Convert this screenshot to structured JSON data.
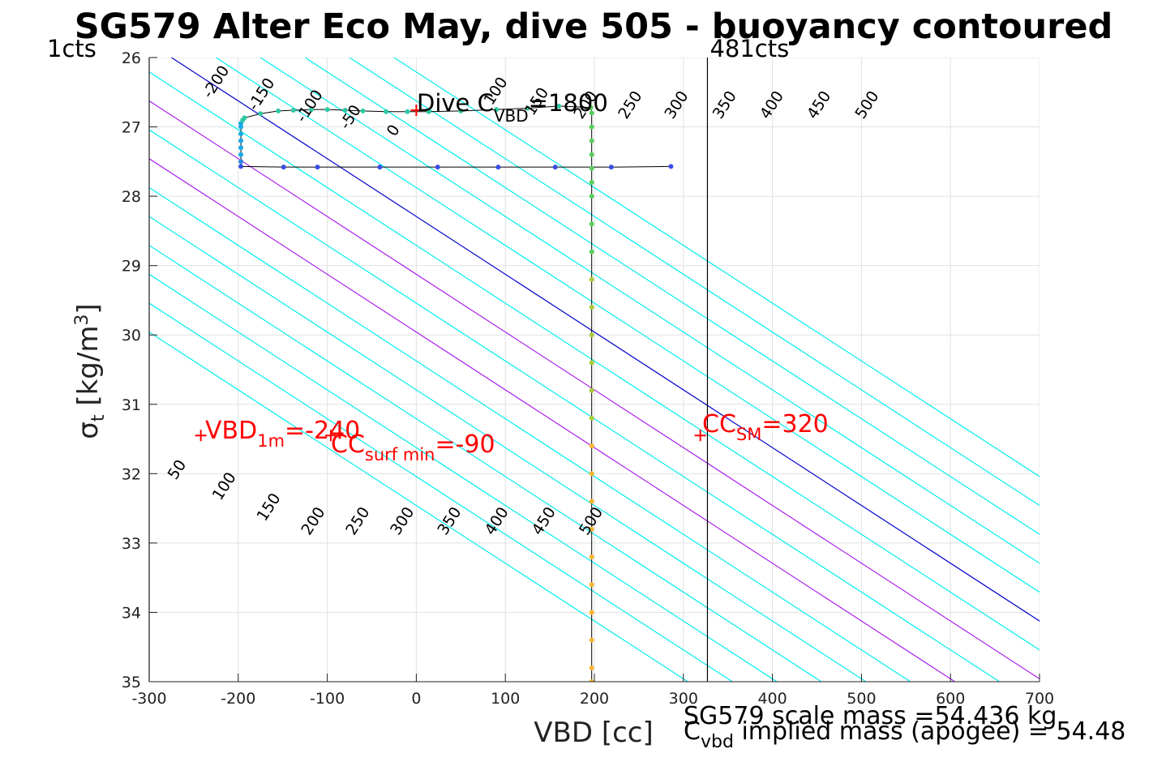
{
  "chart_data": {
    "type": "line",
    "title": "SG579 Alter Eco May, dive 505 - buoyancy contoured",
    "xlabel": "VBD [cc]",
    "ylabel": {
      "sym": "σ",
      "sub": "t",
      "unit": " [kg/m",
      "sup": "3",
      "close": "]"
    },
    "xlim": [
      -300,
      700
    ],
    "ylim": [
      26,
      35
    ],
    "y_reversed": true,
    "grid": true,
    "xticks": [
      -300,
      -200,
      -100,
      0,
      100,
      200,
      300,
      400,
      500,
      600,
      700
    ],
    "yticks": [
      26,
      27,
      28,
      29,
      30,
      31,
      32,
      33,
      34,
      35
    ],
    "contours": {
      "slope_cc_per_kgm3": 120,
      "levels": [
        -250,
        -200,
        -150,
        -100,
        -50,
        0,
        50,
        100,
        150,
        200,
        250,
        300,
        350,
        400,
        450,
        500
      ],
      "zero_intercept_at_sigma_26": -275,
      "special_colors": {
        "0": "#0000cc",
        "100": "#aa22ee",
        "200": "#aa22ee"
      },
      "default_color": "#00eeee",
      "top_labels": [
        {
          "text": "-200",
          "x": -231,
          "y": 26.6
        },
        {
          "text": "-150",
          "x": -180,
          "y": 26.78
        },
        {
          "text": "-100",
          "x": -126,
          "y": 26.95
        },
        {
          "text": "-50",
          "x": -77,
          "y": 27.05
        },
        {
          "text": "0",
          "x": -24,
          "y": 27.15
        },
        {
          "text": "100",
          "x": 85,
          "y": 26.7
        },
        {
          "text": "150",
          "x": 131,
          "y": 26.85
        },
        {
          "text": "200",
          "x": 186,
          "y": 26.9
        },
        {
          "text": "250",
          "x": 236,
          "y": 26.9
        },
        {
          "text": "300",
          "x": 288,
          "y": 26.9
        },
        {
          "text": "350",
          "x": 342,
          "y": 26.9
        },
        {
          "text": "400",
          "x": 395,
          "y": 26.9
        },
        {
          "text": "450",
          "x": 448,
          "y": 26.9
        },
        {
          "text": "500",
          "x": 502,
          "y": 26.9
        }
      ],
      "bottom_labels": [
        {
          "text": "50",
          "x": -270,
          "y": 32.1
        },
        {
          "text": "100",
          "x": -220,
          "y": 32.4
        },
        {
          "text": "150",
          "x": -170,
          "y": 32.7
        },
        {
          "text": "200",
          "x": -120,
          "y": 32.9
        },
        {
          "text": "250",
          "x": -70,
          "y": 32.9
        },
        {
          "text": "300",
          "x": -20,
          "y": 32.9
        },
        {
          "text": "350",
          "x": 33,
          "y": 32.9
        },
        {
          "text": "400",
          "x": 86,
          "y": 32.9
        },
        {
          "text": "450",
          "x": 139,
          "y": 32.9
        },
        {
          "text": "500",
          "x": 192,
          "y": 32.9
        }
      ]
    },
    "vertical_lines": [
      {
        "x": 327,
        "label": "481cts",
        "color": "#000000"
      },
      {
        "x": -300,
        "label": "1cts",
        "color": "#000000"
      }
    ],
    "dive_track": {
      "color": "#000000",
      "x": [
        286,
        219,
        156,
        92,
        24,
        -41,
        -111,
        -149,
        -197,
        -197,
        -197,
        -197,
        -197,
        -197,
        -197,
        -197,
        -195,
        -193,
        -175,
        -155,
        -138,
        -118,
        -100,
        -80,
        -60,
        -34,
        -10,
        14,
        50,
        90,
        125,
        160,
        196,
        197,
        197,
        197,
        197,
        197,
        197,
        197,
        197,
        197,
        197,
        197,
        197,
        197,
        197,
        197,
        197,
        197,
        197,
        197,
        197,
        197,
        197,
        197,
        197,
        197
      ],
      "y": [
        27.57,
        27.58,
        27.58,
        27.58,
        27.58,
        27.58,
        27.58,
        27.58,
        27.57,
        27.5,
        27.4,
        27.3,
        27.2,
        27.1,
        27.0,
        26.95,
        26.9,
        26.87,
        26.81,
        26.77,
        26.76,
        26.75,
        26.75,
        26.76,
        26.77,
        26.78,
        26.78,
        26.78,
        26.77,
        26.75,
        26.73,
        26.7,
        26.72,
        26.8,
        27.0,
        27.2,
        27.4,
        27.6,
        27.8,
        28.0,
        28.4,
        28.8,
        29.2,
        29.6,
        30.0,
        30.4,
        30.8,
        31.2,
        31.6,
        32.0,
        32.4,
        32.8,
        33.2,
        33.6,
        34.0,
        34.4,
        34.8,
        35.0
      ]
    },
    "markers": [
      {
        "name": "vbd-1m",
        "x": -242,
        "y": 31.45,
        "color": "#ff0000"
      },
      {
        "name": "cc-surf-min",
        "x": -96,
        "y": 31.45,
        "color": "#ff0000"
      },
      {
        "name": "cc-sm",
        "x": 319,
        "y": 31.45,
        "color": "#ff0000"
      },
      {
        "name": "dive-c",
        "x": 0,
        "y": 26.76,
        "color": "#ff0000"
      }
    ],
    "annotations": {
      "vbd_1m": {
        "main": "VBD",
        "sub": "1m",
        "rest": "=-240"
      },
      "cc_surf_min": {
        "main": "CC",
        "sub": "surf min",
        "rest": "=-90"
      },
      "cc_sm": {
        "main": "CC",
        "sub": "SM",
        "rest": "=320"
      },
      "dive_c": {
        "main": "Dive C",
        "sub": "VBD",
        "rest": "=1800"
      }
    },
    "footer": {
      "line1": "SG579 scale mass =54.436 kg",
      "line2_main": "C",
      "line2_sub": "vbd",
      "line2_rest": " implied mass (apogee) = 54.48"
    }
  }
}
